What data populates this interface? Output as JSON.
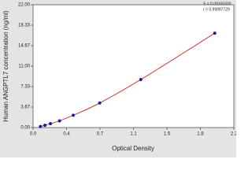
{
  "chart_data": {
    "type": "scatter",
    "x_label": "Optical Density",
    "y_label": "Human ANGPTL7 concentration (ng/ml)",
    "annotations": [
      "S = 0.09150320",
      "r = 0.99997729"
    ],
    "x": [
      0.08,
      0.13,
      0.19,
      0.29,
      0.44,
      0.73,
      1.18,
      1.99
    ],
    "series": [
      {
        "name": "Standards",
        "color": "#1a1aa0",
        "curve_color": "#cc2222",
        "values": [
          0.2,
          0.4,
          0.7,
          1.2,
          2.2,
          4.4,
          8.6,
          16.9
        ]
      }
    ],
    "xlim": [
      0,
      2.2
    ],
    "xticks": [
      {
        "value": 0,
        "label": "0.0"
      },
      {
        "value": 0.367,
        "label": "0.4"
      },
      {
        "value": 0.733,
        "label": "0.7"
      },
      {
        "value": 1.1,
        "label": "1.1"
      },
      {
        "value": 1.467,
        "label": "1.5"
      },
      {
        "value": 1.833,
        "label": "1.8"
      },
      {
        "value": 2.2,
        "label": "2.2"
      }
    ],
    "ylim": [
      0,
      22
    ],
    "yticks": [
      {
        "value": 0,
        "label": "0.00"
      },
      {
        "value": 3.667,
        "label": "3.67"
      },
      {
        "value": 7.333,
        "label": "7.33"
      },
      {
        "value": 11,
        "label": "11.00"
      },
      {
        "value": 14.667,
        "label": "14.67"
      },
      {
        "value": 18.333,
        "label": "18.33"
      },
      {
        "value": 22,
        "label": "22.00"
      }
    ],
    "grid": false
  }
}
